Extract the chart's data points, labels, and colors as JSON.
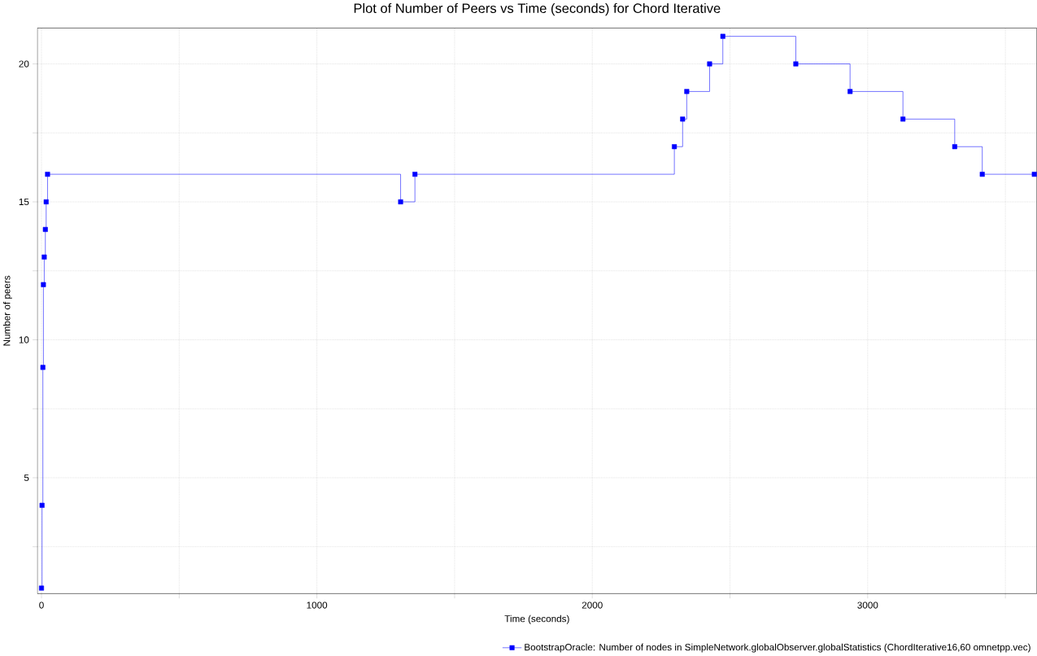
{
  "chart_data": {
    "type": "step",
    "title": "Plot of Number of Peers vs Time (seconds) for Chord Iterative",
    "xlabel": "Time (seconds)",
    "ylabel": "Number of peers",
    "series": [
      {
        "name": "BootstrapOracle: Number of nodes in SimpleNetwork.globalObserver.globalStatistics (ChordIterative16,60  omnetpp.vec)",
        "color": "#0000ff",
        "x": [
          0,
          2,
          5,
          7,
          10,
          14,
          17,
          22,
          1304,
          1356,
          2298,
          2328,
          2343,
          2426,
          2474,
          2739,
          2936,
          3128,
          3316,
          3416,
          3605
        ],
        "values": [
          1,
          4,
          9,
          12,
          13,
          14,
          15,
          16,
          15,
          16,
          17,
          18,
          19,
          20,
          21,
          20,
          19,
          18,
          17,
          16,
          16
        ]
      }
    ],
    "xlim": [
      -15,
      3614
    ],
    "ylim": [
      0.8,
      21.3
    ],
    "xticks": [
      0,
      {
        "value": 500,
        "label": null
      },
      1000,
      {
        "value": 1500,
        "label": null
      },
      2000,
      {
        "value": 2500,
        "label": null
      },
      3000,
      {
        "value": 3500,
        "label": null
      }
    ],
    "yticks": [
      {
        "value": 2.5,
        "label": null
      },
      5,
      {
        "value": 7.5,
        "label": null
      },
      10,
      {
        "value": 12.5,
        "label": null
      },
      15,
      {
        "value": 17.5,
        "label": null
      },
      20
    ],
    "grid": true,
    "legend": "bottom",
    "marker": "square",
    "line_style": "solid"
  }
}
